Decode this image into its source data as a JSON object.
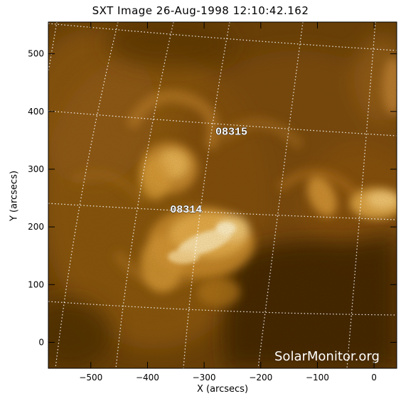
{
  "title": "SXT Image 26-Aug-1998 12:10:42.162",
  "axes": {
    "xlabel": "X (arcsecs)",
    "ylabel": "Y (arcsecs)",
    "xlim": [
      -575,
      40
    ],
    "ylim": [
      -45,
      555
    ],
    "xticks": [
      -500,
      -400,
      -300,
      -200,
      -100,
      0
    ],
    "yticks": [
      0,
      100,
      200,
      300,
      400,
      500
    ]
  },
  "regions": [
    {
      "number": "08315",
      "x": -280,
      "y": 360
    },
    {
      "number": "08314",
      "x": -360,
      "y": 225
    }
  ],
  "credit": "SolarMonitor.org",
  "colors": {
    "background": "#6a3f08",
    "grid": "#ffffff",
    "frame": "#000000"
  }
}
